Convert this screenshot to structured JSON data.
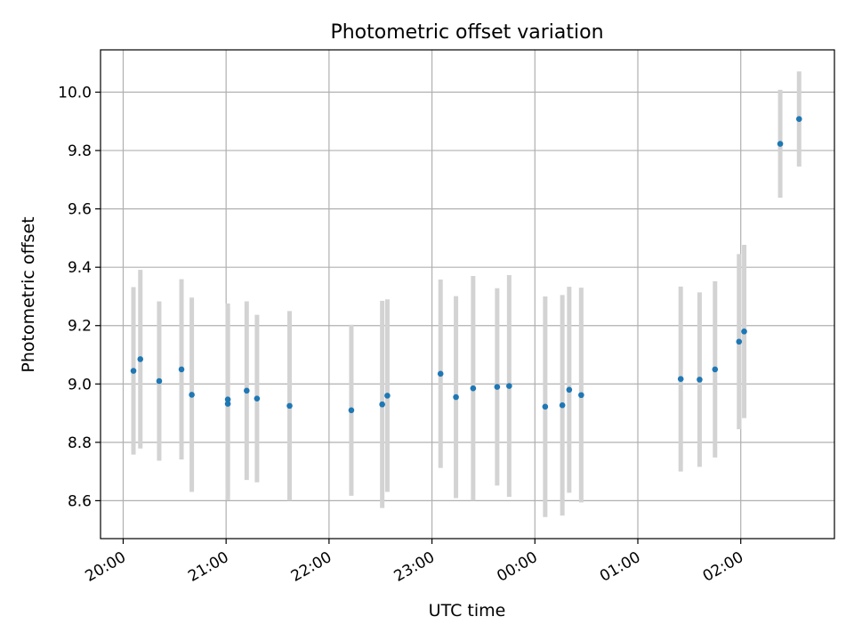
{
  "chart_data": {
    "type": "scatter",
    "title": "Photometric offset variation",
    "xlabel": "UTC time",
    "ylabel": "Photometric offset",
    "grid": true,
    "xlim_minutes": [
      -13.2,
      414.6
    ],
    "ylim": [
      8.47,
      10.145
    ],
    "x_ticks": [
      {
        "label": "20:00",
        "minutes": 0
      },
      {
        "label": "21:00",
        "minutes": 60
      },
      {
        "label": "22:00",
        "minutes": 120
      },
      {
        "label": "23:00",
        "minutes": 180
      },
      {
        "label": "00:00",
        "minutes": 240
      },
      {
        "label": "01:00",
        "minutes": 300
      },
      {
        "label": "02:00",
        "minutes": 360
      }
    ],
    "y_ticks": [
      {
        "label": "8.6",
        "value": 8.6
      },
      {
        "label": "8.8",
        "value": 8.8
      },
      {
        "label": "9.0",
        "value": 9.0
      },
      {
        "label": "9.2",
        "value": 9.2
      },
      {
        "label": "9.4",
        "value": 9.4
      },
      {
        "label": "9.6",
        "value": 9.6
      },
      {
        "label": "9.8",
        "value": 9.8
      },
      {
        "label": "10.0",
        "value": 10.0
      }
    ],
    "marker_color": "#1f77b4",
    "errorbar_color": "#d3d3d3",
    "points": [
      {
        "time": "20:06",
        "y": 9.045,
        "err": 0.287
      },
      {
        "time": "20:10",
        "y": 9.085,
        "err": 0.306
      },
      {
        "time": "20:21",
        "y": 9.01,
        "err": 0.273
      },
      {
        "time": "20:34",
        "y": 9.05,
        "err": 0.309
      },
      {
        "time": "20:40",
        "y": 8.963,
        "err": 0.333
      },
      {
        "time": "21:01",
        "y": 8.947,
        "err": 0.329
      },
      {
        "time": "21:01",
        "y": 8.932,
        "err": 0.33
      },
      {
        "time": "21:12",
        "y": 8.977,
        "err": 0.306
      },
      {
        "time": "21:18",
        "y": 8.95,
        "err": 0.287
      },
      {
        "time": "21:37",
        "y": 8.925,
        "err": 0.325
      },
      {
        "time": "22:13",
        "y": 8.91,
        "err": 0.293
      },
      {
        "time": "22:31",
        "y": 8.93,
        "err": 0.355
      },
      {
        "time": "22:34",
        "y": 8.96,
        "err": 0.33
      },
      {
        "time": "23:05",
        "y": 9.035,
        "err": 0.323
      },
      {
        "time": "23:14",
        "y": 8.955,
        "err": 0.346
      },
      {
        "time": "23:24",
        "y": 8.985,
        "err": 0.385
      },
      {
        "time": "23:38",
        "y": 8.99,
        "err": 0.338
      },
      {
        "time": "23:45",
        "y": 8.993,
        "err": 0.38
      },
      {
        "time": "00:06",
        "y": 8.922,
        "err": 0.378
      },
      {
        "time": "00:16",
        "y": 8.927,
        "err": 0.378
      },
      {
        "time": "00:20",
        "y": 8.98,
        "err": 0.353
      },
      {
        "time": "00:27",
        "y": 8.962,
        "err": 0.368
      },
      {
        "time": "01:25",
        "y": 9.017,
        "err": 0.317
      },
      {
        "time": "01:36",
        "y": 9.015,
        "err": 0.299
      },
      {
        "time": "01:45",
        "y": 9.05,
        "err": 0.302
      },
      {
        "time": "01:59",
        "y": 9.145,
        "err": 0.3
      },
      {
        "time": "02:02",
        "y": 9.18,
        "err": 0.297
      },
      {
        "time": "02:23",
        "y": 9.823,
        "err": 0.185
      },
      {
        "time": "02:34",
        "y": 9.908,
        "err": 0.163
      }
    ]
  }
}
